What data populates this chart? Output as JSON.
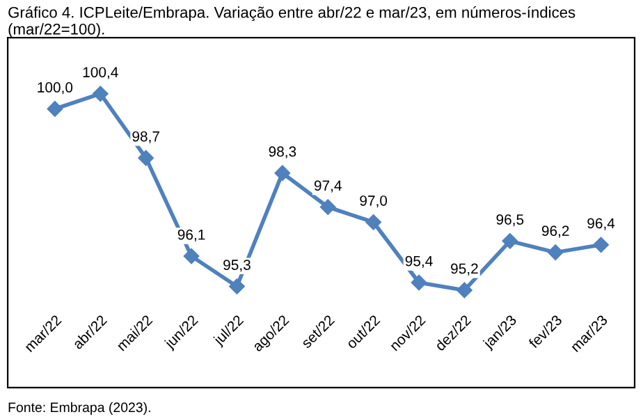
{
  "chart_data": {
    "type": "line",
    "title": "Gráfico 4. ICPLeite/Embrapa. Variação entre abr/22 e mar/23, em números-índices (mar/22=100).",
    "categories": [
      "mar/22",
      "abr/22",
      "mai/22",
      "jun/22",
      "jul/22",
      "ago/22",
      "set/22",
      "out/22",
      "nov/22",
      "dez/22",
      "jan/23",
      "fev/23",
      "mar/23"
    ],
    "series": [
      {
        "color": "#4f81bd",
        "values": [
          100.0,
          100.4,
          98.7,
          96.1,
          95.3,
          98.3,
          97.4,
          97.0,
          95.4,
          95.2,
          96.5,
          96.2,
          96.4
        ],
        "value_labels": [
          "100,0",
          "100,4",
          "98,7",
          "96,1",
          "95,3",
          "98,3",
          "97,4",
          "97,0",
          "95,4",
          "95,2",
          "96,5",
          "96,2",
          "96,4"
        ]
      }
    ],
    "marker": "diamond",
    "grid": false,
    "legend": false,
    "annotations": [
      "Fonte: Embrapa (2023)."
    ]
  }
}
